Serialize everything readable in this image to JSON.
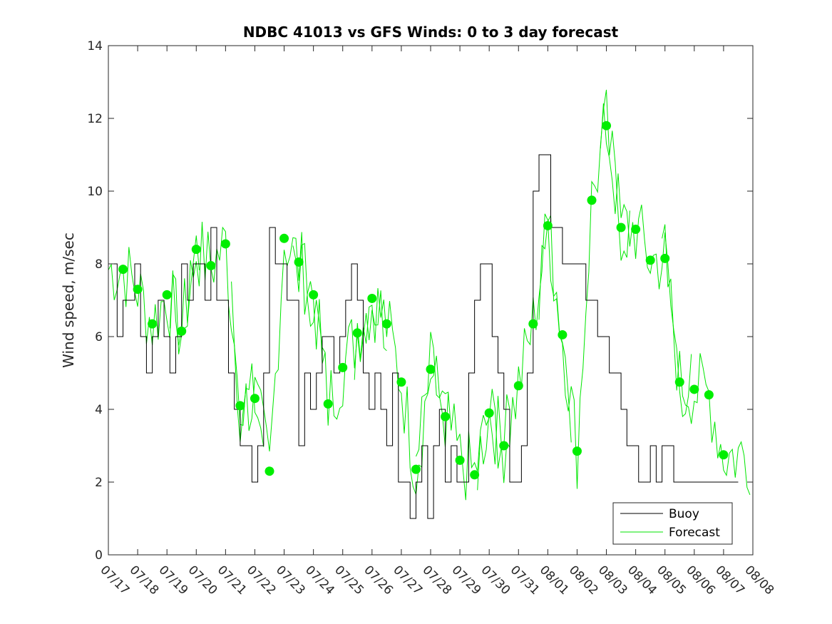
{
  "chart_data": {
    "type": "line",
    "title": "NDBC 41013 vs GFS Winds: 0 to 3 day forecast",
    "xlabel": "",
    "ylabel": "Wind speed, m/sec",
    "ylim": [
      0,
      14
    ],
    "yticks": [
      0,
      2,
      4,
      6,
      8,
      10,
      12,
      14
    ],
    "xlim": [
      0,
      22
    ],
    "xtick_labels": [
      "07/17",
      "07/18",
      "07/19",
      "07/20",
      "07/21",
      "07/22",
      "07/23",
      "07/24",
      "07/25",
      "07/26",
      "07/27",
      "07/28",
      "07/29",
      "07/30",
      "07/31",
      "08/01",
      "08/02",
      "08/03",
      "08/04",
      "08/05",
      "08/06",
      "08/07",
      "08/08"
    ],
    "grid": false,
    "legend": {
      "position": "bottom-right",
      "entries": [
        "Buoy",
        "Forecast"
      ]
    },
    "colors": {
      "buoy": "#000000",
      "forecast": "#00e600",
      "markers": "#00ee00"
    },
    "series": [
      {
        "name": "Buoy",
        "style": "step",
        "x": [
          0,
          0.3,
          0.5,
          0.7,
          0.9,
          1.1,
          1.3,
          1.5,
          1.7,
          1.9,
          2.1,
          2.3,
          2.5,
          2.7,
          2.9,
          3.1,
          3.3,
          3.5,
          3.7,
          3.9,
          4.1,
          4.3,
          4.5,
          4.7,
          4.9,
          5.1,
          5.3,
          5.5,
          5.7,
          5.9,
          6.1,
          6.3,
          6.5,
          6.7,
          6.9,
          7.1,
          7.3,
          7.5,
          7.7,
          7.9,
          8.1,
          8.3,
          8.5,
          8.7,
          8.9,
          9.1,
          9.3,
          9.5,
          9.7,
          9.9,
          10.1,
          10.3,
          10.5,
          10.7,
          10.9,
          11.1,
          11.3,
          11.5,
          11.7,
          11.9,
          12.1,
          12.3,
          12.5,
          12.7,
          12.9,
          13.1,
          13.3,
          13.5,
          13.7,
          13.9,
          14.1,
          14.3,
          14.5,
          14.7,
          14.9,
          15.1,
          15.3,
          15.5,
          15.7,
          15.9,
          16.1,
          16.3,
          16.5,
          16.7,
          16.9,
          17.1,
          17.3,
          17.5,
          17.7,
          17.9,
          18.1,
          18.3,
          18.5,
          18.7,
          18.9,
          19.1,
          19.3,
          19.5,
          19.7,
          19.9,
          20.1,
          20.3,
          20.5,
          20.7,
          20.9,
          21.1,
          21.3
        ],
        "values": [
          8,
          6,
          7,
          7,
          8,
          6,
          5,
          6,
          7,
          6,
          5,
          6,
          8,
          7,
          8,
          8,
          7,
          9,
          7,
          7,
          5,
          4,
          3,
          3,
          2,
          3,
          5,
          9,
          8,
          8,
          7,
          7,
          3,
          5,
          4,
          5,
          6,
          6,
          5,
          6,
          7,
          8,
          7,
          5,
          4,
          5,
          4,
          3,
          5,
          2,
          2,
          1,
          2,
          3,
          1,
          3,
          4,
          2,
          3,
          2,
          2,
          5,
          7,
          8,
          8,
          6,
          5,
          4,
          2,
          2,
          3,
          5,
          10,
          11,
          11,
          9,
          9,
          8,
          8,
          8,
          8,
          7,
          7,
          6,
          6,
          5,
          5,
          4,
          3,
          3,
          2,
          2,
          3,
          2,
          3,
          3,
          2,
          2,
          2,
          2,
          2,
          2,
          2,
          2,
          2,
          2,
          2
        ]
      },
      {
        "name": "Forecast",
        "style": "ensemble",
        "markers": {
          "x": [
            0.5,
            1.0,
            1.5,
            2.0,
            2.5,
            3.0,
            3.5,
            4.0,
            4.5,
            5.0,
            5.5,
            6.0,
            6.5,
            7.0,
            7.5,
            8.0,
            8.5,
            9.0,
            9.5,
            10.0,
            10.5,
            11.0,
            11.5,
            12.0,
            12.5,
            13.0,
            13.5,
            14.0,
            14.5,
            15.0,
            15.5,
            16.0,
            16.5,
            17.0,
            17.5,
            18.0,
            18.5,
            19.0,
            19.5,
            20.0,
            20.5,
            21.0
          ],
          "values": [
            7.85,
            7.3,
            6.35,
            7.15,
            6.15,
            8.4,
            7.95,
            8.55,
            4.1,
            4.3,
            2.3,
            8.7,
            8.05,
            7.15,
            4.15,
            5.15,
            6.1,
            7.05,
            6.35,
            4.75,
            2.35,
            5.1,
            3.8,
            2.6,
            2.2,
            3.9,
            3.0,
            4.65,
            6.35,
            9.05,
            6.05,
            2.85,
            9.75,
            11.8,
            9.0,
            8.95,
            8.1,
            8.15,
            4.75,
            4.55,
            4.4,
            2.75
          ]
        }
      }
    ],
    "legend_labels": {
      "buoy": "Buoy",
      "forecast": "Forecast"
    }
  }
}
